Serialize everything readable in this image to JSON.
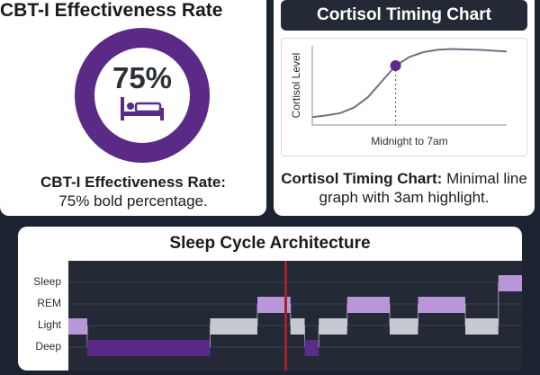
{
  "effectiveness": {
    "title": "CBT-I Effectiveness Rate",
    "percent_label": "75%",
    "value_fraction": 0.75,
    "icon": "bed-icon",
    "caption_bold": "CBT-I Effectiveness Rate:",
    "caption_rest": "75% bold percentage.",
    "colors": {
      "fill": "#5b2a86",
      "track": "#e3dcea"
    }
  },
  "cortisol": {
    "title": "Cortisol Timing Chart",
    "caption_bold": "Cortisol Timing Chart:",
    "caption_rest": "Minimal line graph with 3am highlight.",
    "colors": {
      "line": "#6b7280",
      "marker": "#5b2a86"
    }
  },
  "sleep": {
    "title": "Sleep Cycle Architecture",
    "colors": {
      "background": "#232a36",
      "grid": "#3a4150",
      "highlight": "#a3232a",
      "purple": "#5b2a86",
      "lavender": "#b996d9",
      "gray": "#c6c9d1"
    }
  },
  "chart_data": [
    {
      "type": "line",
      "title": "Cortisol Timing Chart",
      "xlabel": "Midnight to 7am",
      "ylabel": "Cortisol Level",
      "x": [
        0,
        0.5,
        1,
        1.5,
        2,
        2.5,
        3,
        3.5,
        4,
        4.5,
        5,
        6,
        7
      ],
      "y": [
        0.1,
        0.12,
        0.15,
        0.22,
        0.35,
        0.55,
        0.75,
        0.86,
        0.92,
        0.95,
        0.96,
        0.95,
        0.93
      ],
      "xlim": [
        0,
        7
      ],
      "ylim": [
        0,
        1
      ],
      "highlight": {
        "x": 3,
        "y": 0.75
      },
      "grid": false
    },
    {
      "type": "step",
      "title": "Sleep Cycle Architecture",
      "stages": [
        "Sleep",
        "REM",
        "Light",
        "Deep"
      ],
      "segments": [
        {
          "stage": "Light",
          "start": 0,
          "end": 20,
          "color": "lavender"
        },
        {
          "stage": "Deep",
          "start": 20,
          "end": 150,
          "color": "purple"
        },
        {
          "stage": "Light",
          "start": 150,
          "end": 200,
          "color": "gray"
        },
        {
          "stage": "REM",
          "start": 200,
          "end": 235,
          "color": "lavender"
        },
        {
          "stage": "Light",
          "start": 235,
          "end": 250,
          "color": "gray"
        },
        {
          "stage": "Deep",
          "start": 250,
          "end": 265,
          "color": "purple"
        },
        {
          "stage": "Light",
          "start": 265,
          "end": 295,
          "color": "gray"
        },
        {
          "stage": "REM",
          "start": 295,
          "end": 340,
          "color": "lavender"
        },
        {
          "stage": "Light",
          "start": 340,
          "end": 370,
          "color": "gray"
        },
        {
          "stage": "REM",
          "start": 370,
          "end": 420,
          "color": "lavender"
        },
        {
          "stage": "Light",
          "start": 420,
          "end": 455,
          "color": "gray"
        },
        {
          "stage": "Sleep",
          "start": 455,
          "end": 480,
          "color": "lavender"
        }
      ],
      "xlim": [
        0,
        480
      ],
      "highlight_x": 230,
      "grid": true
    }
  ]
}
